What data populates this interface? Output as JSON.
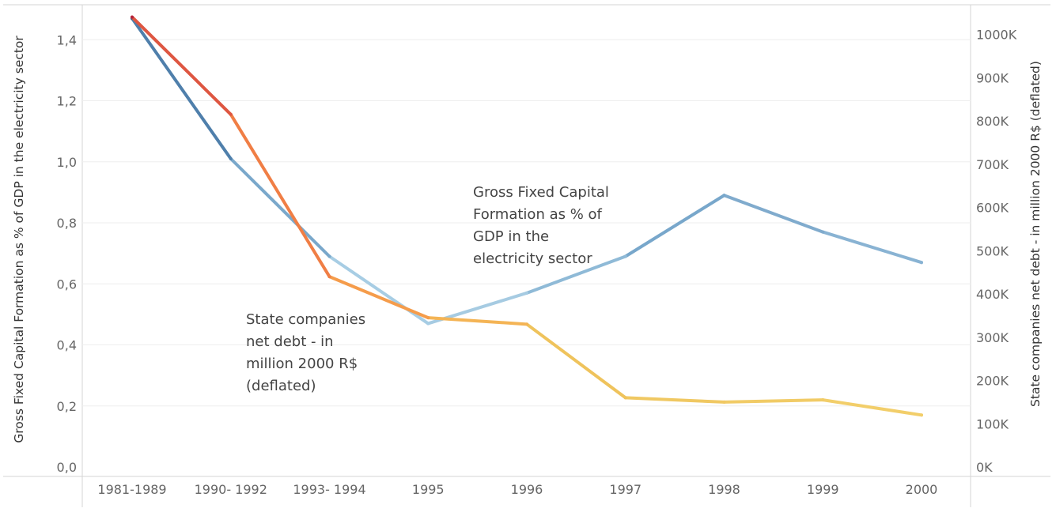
{
  "chart_data": {
    "type": "line",
    "categories": [
      "1981-1989",
      "1990- 1992",
      "1993- 1994",
      "1995",
      "1996",
      "1997",
      "1998",
      "1999",
      "2000"
    ],
    "y_left": {
      "label": "Gross Fixed Capital Formation as % of GDP in the electricity sector",
      "range": [
        0,
        1.5
      ],
      "ticks": [
        "0,0",
        "0,2",
        "0,4",
        "0,6",
        "0,8",
        "1,0",
        "1,2",
        "1,4"
      ],
      "tick_values": [
        0,
        0.2,
        0.4,
        0.6,
        0.8,
        1.0,
        1.2,
        1.4
      ]
    },
    "y_right": {
      "label": "State companies net debt - in million 2000 R$ (deflated)",
      "range": [
        0,
        1100000
      ],
      "ticks": [
        "0K",
        "100K",
        "200K",
        "300K",
        "400K",
        "500K",
        "600K",
        "700K",
        "800K",
        "900K",
        "1000K"
      ],
      "tick_values": [
        0,
        100000,
        200000,
        300000,
        400000,
        500000,
        600000,
        700000,
        800000,
        900000,
        1000000
      ]
    },
    "series": [
      {
        "axis": "left",
        "values": [
          1.47,
          1.01,
          0.69,
          0.47,
          0.57,
          0.69,
          0.89,
          0.77,
          0.67
        ],
        "colors": [
          "#2f5b87",
          "#4f7fab",
          "#7aa8cb",
          "#a7cde4",
          "#a6cbe2",
          "#8fbad7",
          "#78a7cb",
          "#80abcd",
          "#89b3d3"
        ]
      },
      {
        "axis": "right",
        "values": [
          1040000,
          815000,
          440000,
          345000,
          330000,
          160000,
          150000,
          155000,
          120000
        ],
        "colors": [
          "#b2213a",
          "#de5641",
          "#f07e45",
          "#f59c4b",
          "#f4b455",
          "#efc35c",
          "#f0c862",
          "#f1cb66",
          "#f2ce6a"
        ]
      }
    ],
    "annotations": [
      {
        "lines": [
          "Gross Fixed Capital",
          "Formation as % of",
          "GDP in the",
          "electricity sector"
        ]
      },
      {
        "lines": [
          "State companies",
          "net debt - in",
          "million 2000 R$",
          "(deflated)"
        ]
      }
    ],
    "grid": true,
    "legend": "none"
  }
}
